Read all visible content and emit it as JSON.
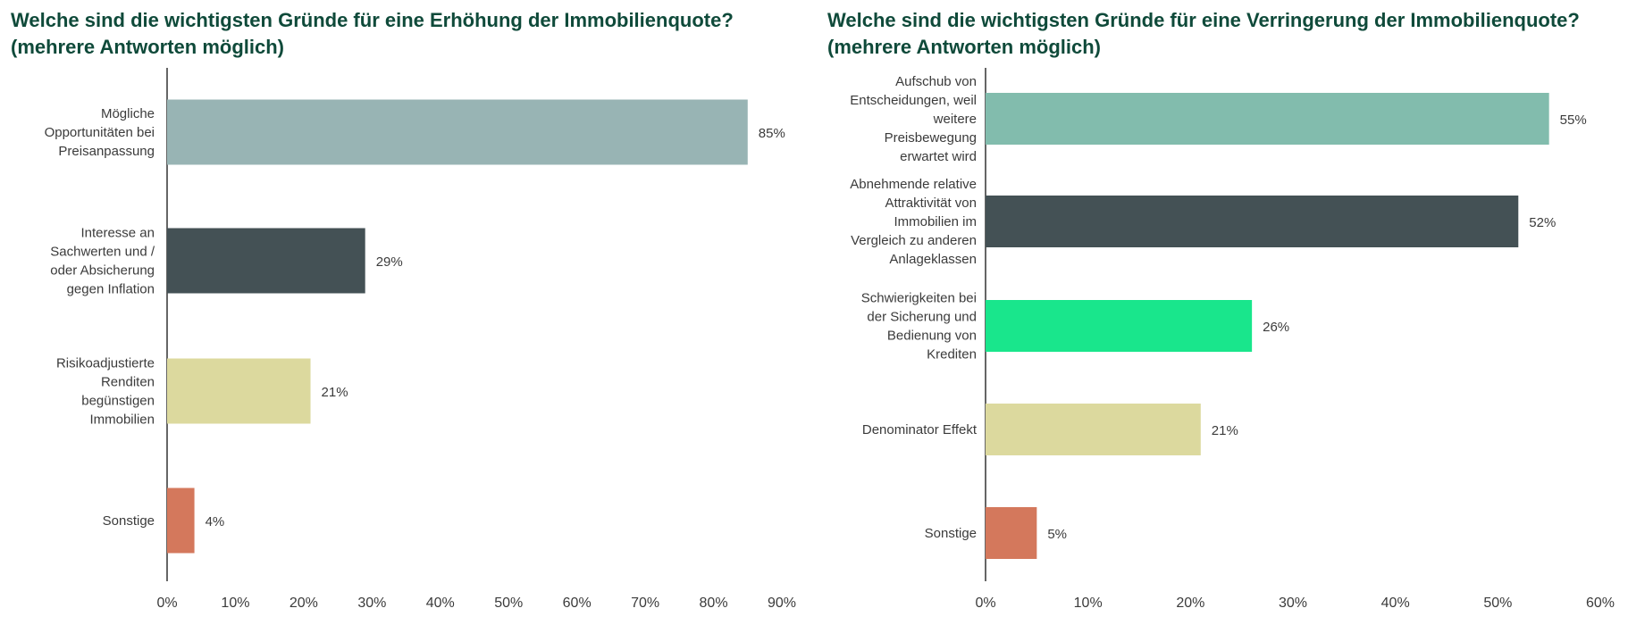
{
  "chart_data": [
    {
      "type": "bar",
      "orientation": "horizontal",
      "title": "Welche sind die wichtigsten Gründe für eine Erhöhung der Immobilienquote?\n(mehrere Antworten möglich)",
      "categories": [
        "Mögliche Opportunitäten bei Preisanpassung",
        "Interesse an Sachwerten und / oder Absicherung gegen Inflation",
        "Risikoadjustierte Renditen begünstigen Immobilien",
        "Sonstige"
      ],
      "category_lines": [
        [
          "Mögliche",
          "Opportunitäten bei",
          "Preisanpassung"
        ],
        [
          "Interesse an",
          "Sachwerten und /",
          "oder Absicherung",
          "gegen Inflation"
        ],
        [
          "Risikoadjustierte",
          "Renditen",
          "begünstigen",
          "Immobilien"
        ],
        [
          "Sonstige"
        ]
      ],
      "values": [
        85,
        29,
        21,
        4
      ],
      "value_labels": [
        "85%",
        "29%",
        "21%",
        "4%"
      ],
      "colors": [
        "#98b4b4",
        "#445155",
        "#dcd99e",
        "#d4785c"
      ],
      "xlim": [
        0,
        90
      ],
      "x_ticks": [
        0,
        10,
        20,
        30,
        40,
        50,
        60,
        70,
        80,
        90
      ],
      "x_tick_labels": [
        "0%",
        "10%",
        "20%",
        "30%",
        "40%",
        "50%",
        "60%",
        "70%",
        "80%",
        "90%"
      ],
      "xlabel": "",
      "ylabel": "",
      "grid": false
    },
    {
      "type": "bar",
      "orientation": "horizontal",
      "title": "Welche sind die wichtigsten Gründe für eine Verringerung der Immobilienquote?\n(mehrere Antworten möglich)",
      "categories": [
        "Aufschub von Entscheidungen, weil weitere Preisbewegung erwartet wird",
        "Abnehmende relative Attraktivität von Immobilien im Vergleich zu anderen Anlageklassen",
        "Schwierigkeiten bei der Sicherung und Bedienung von Krediten",
        "Denominator Effekt",
        "Sonstige"
      ],
      "category_lines": [
        [
          "Aufschub von",
          "Entscheidungen, weil",
          "weitere",
          "Preisbewegung",
          "erwartet wird"
        ],
        [
          "Abnehmende relative",
          "Attraktivität von",
          "Immobilien im",
          "Vergleich zu anderen",
          "Anlageklassen"
        ],
        [
          "Schwierigkeiten bei",
          "der Sicherung und",
          "Bedienung von",
          "Krediten"
        ],
        [
          "Denominator Effekt"
        ],
        [
          "Sonstige"
        ]
      ],
      "values": [
        55,
        52,
        26,
        21,
        5
      ],
      "value_labels": [
        "55%",
        "52%",
        "26%",
        "21%",
        "5%"
      ],
      "colors": [
        "#82bcad",
        "#445155",
        "#19e68c",
        "#dcd99e",
        "#d4785c"
      ],
      "xlim": [
        0,
        60
      ],
      "x_ticks": [
        0,
        10,
        20,
        30,
        40,
        50,
        60
      ],
      "x_tick_labels": [
        "0%",
        "10%",
        "20%",
        "30%",
        "40%",
        "50%",
        "60%"
      ],
      "xlabel": "",
      "ylabel": "",
      "grid": false
    }
  ]
}
